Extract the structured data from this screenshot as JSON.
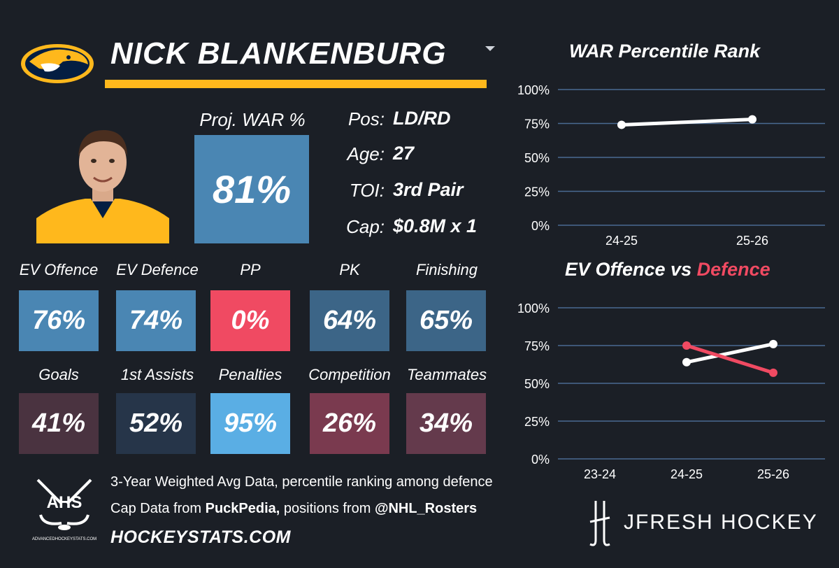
{
  "header": {
    "player_name": "NICK BLANKENBURG"
  },
  "proj_war": {
    "label": "Proj. WAR %",
    "value": "81%",
    "color": "#4a86b3"
  },
  "info": [
    {
      "label": "Pos:",
      "value": "LD/RD"
    },
    {
      "label": "Age:",
      "value": "27"
    },
    {
      "label": "TOI:",
      "value": "3rd Pair"
    },
    {
      "label": "Cap:",
      "value": "$0.8M x 1"
    }
  ],
  "stats_row1": [
    {
      "label": "EV Offence",
      "value": "76%",
      "color": "#4a86b3"
    },
    {
      "label": "EV Defence",
      "value": "74%",
      "color": "#4a86b3"
    },
    {
      "label": "PP",
      "value": "0%",
      "color": "#f04a62"
    },
    {
      "label": "PK",
      "value": "64%",
      "color": "#3c6587"
    },
    {
      "label": "Finishing",
      "value": "65%",
      "color": "#3c6587"
    }
  ],
  "stats_row2": [
    {
      "label": "Goals",
      "value": "41%",
      "color": "#4a3340"
    },
    {
      "label": "1st Assists",
      "value": "52%",
      "color": "#263549"
    },
    {
      "label": "Penalties",
      "value": "95%",
      "color": "#5aaee4"
    },
    {
      "label": "Competition",
      "value": "26%",
      "color": "#7a3a4f"
    },
    {
      "label": "Teammates",
      "value": "34%",
      "color": "#643a4c"
    }
  ],
  "footer": {
    "line1": "3-Year Weighted Avg Data, percentile ranking among defence",
    "line2_a": "Cap Data from ",
    "line2_b": "PuckPedia,",
    "line2_c": " positions from ",
    "line2_d": "@NHL_Rosters",
    "site": "HOCKEYSTATS.COM",
    "ahs_text": "AHS",
    "ahs_sub": "ADVANCEDHOCKEYSTATS.COM",
    "brand": "JFRESH HOCKEY"
  },
  "chart_data": [
    {
      "type": "line",
      "title": "WAR Percentile Rank",
      "x": [
        "24-25",
        "25-26"
      ],
      "yticks": [
        "100%",
        "75%",
        "50%",
        "25%",
        "0%"
      ],
      "ylim": [
        0,
        100
      ],
      "series": [
        {
          "values": [
            74,
            78
          ],
          "color": "#ffffff"
        }
      ]
    },
    {
      "type": "line",
      "title_a": "EV Offence vs ",
      "title_b": "Defence",
      "title_b_color": "#f04a62",
      "x": [
        "23-24",
        "24-25",
        "25-26"
      ],
      "yticks": [
        "100%",
        "75%",
        "50%",
        "25%",
        "0%"
      ],
      "ylim": [
        0,
        100
      ],
      "series": [
        {
          "values": [
            null,
            64,
            76
          ],
          "color": "#ffffff"
        },
        {
          "values": [
            null,
            75,
            57
          ],
          "color": "#f04a62"
        }
      ]
    }
  ]
}
